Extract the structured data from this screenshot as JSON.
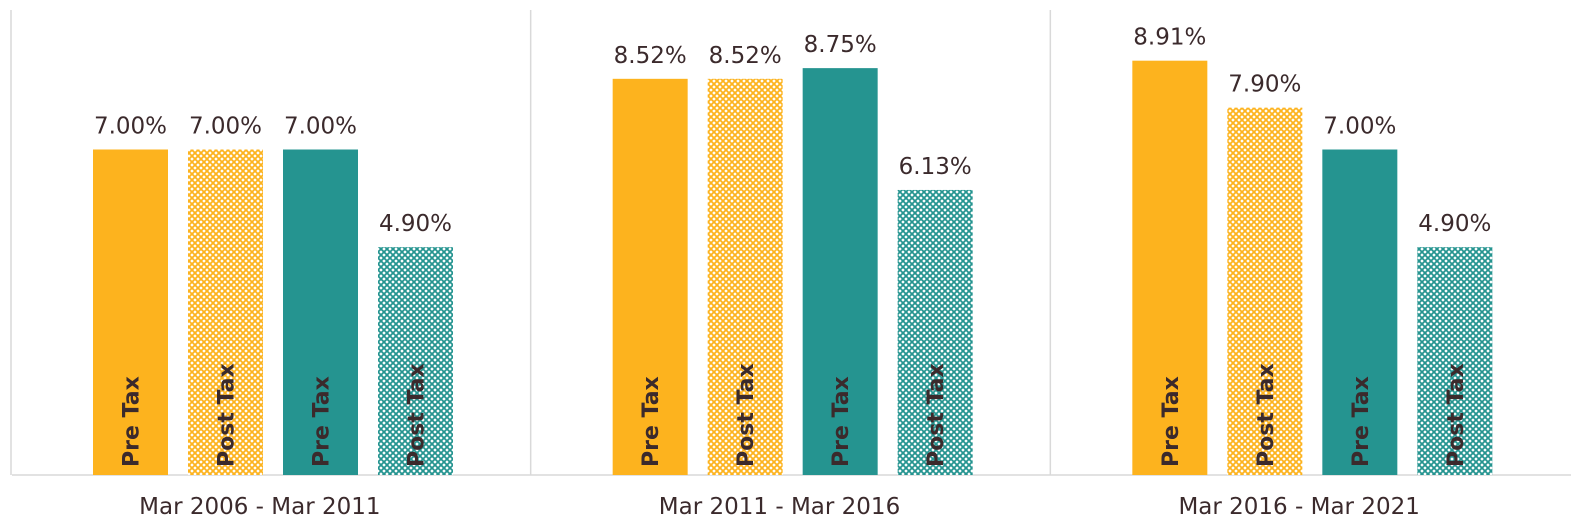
{
  "chart_data": {
    "type": "bar",
    "categories": [
      "Mar 2006 - Mar 2011",
      "Mar 2011 - Mar 2016",
      "Mar 2016 - Mar 2021"
    ],
    "ylim": [
      0,
      10
    ],
    "series": [
      {
        "name": "Pre Tax",
        "color": "#fdb31e",
        "hatch": false,
        "values": [
          7.0,
          8.52,
          8.91
        ],
        "value_labels": [
          "7.00%",
          "8.52%",
          "8.91%"
        ]
      },
      {
        "name": "Post Tax",
        "color": "#fdb31e",
        "hatch": true,
        "values": [
          7.0,
          8.52,
          7.9
        ],
        "value_labels": [
          "7.00%",
          "8.52%",
          "7.90%"
        ]
      },
      {
        "name": "Pre Tax",
        "color": "#259490",
        "hatch": false,
        "values": [
          7.0,
          8.75,
          7.0
        ],
        "value_labels": [
          "7.00%",
          "8.75%",
          "7.00%"
        ]
      },
      {
        "name": "Post Tax",
        "color": "#259490",
        "hatch": true,
        "values": [
          4.9,
          6.13,
          4.9
        ],
        "value_labels": [
          "4.90%",
          "6.13%",
          "4.90%"
        ]
      }
    ]
  }
}
